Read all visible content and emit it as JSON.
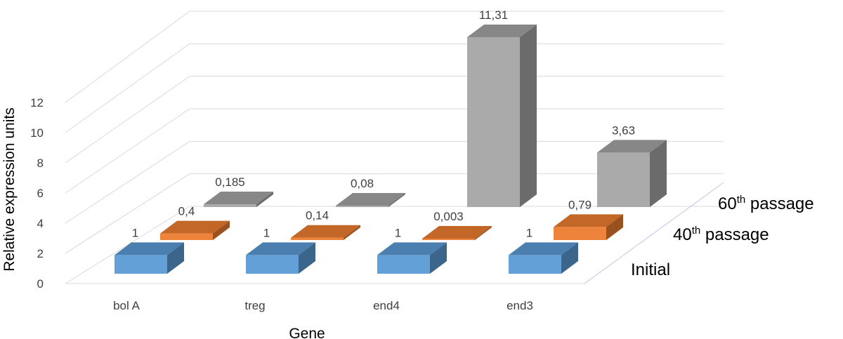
{
  "chart_data": {
    "type": "bar",
    "bar_style": "3d",
    "categories": [
      "bol A",
      "treg",
      "end4",
      "end3"
    ],
    "series": [
      {
        "name": "Initial",
        "values": [
          1,
          1,
          1,
          1
        ],
        "labels": [
          "1",
          "1",
          "1",
          "1"
        ],
        "color": "#5B9BD5"
      },
      {
        "name": "40th passage",
        "name_base": "40",
        "name_sup": "th",
        "name_rest": " passage",
        "values": [
          0.4,
          0.14,
          0.003,
          0.79
        ],
        "labels": [
          "0,4",
          "0,14",
          "0,003",
          "0,79"
        ],
        "color": "#ED7D31"
      },
      {
        "name": "60th passage",
        "name_base": "60",
        "name_sup": "th",
        "name_rest": " passage",
        "values": [
          0.185,
          0.08,
          11.31,
          3.63
        ],
        "labels": [
          "0,185",
          "0,08",
          "11,31",
          "3,63"
        ],
        "color": "#A5A5A5"
      }
    ],
    "xlabel": "Gene",
    "ylabel": "Relative expression units",
    "ylim": [
      0,
      12
    ],
    "yticks": [
      "0",
      "2",
      "4",
      "6",
      "8",
      "10",
      "12"
    ],
    "grid": true
  }
}
